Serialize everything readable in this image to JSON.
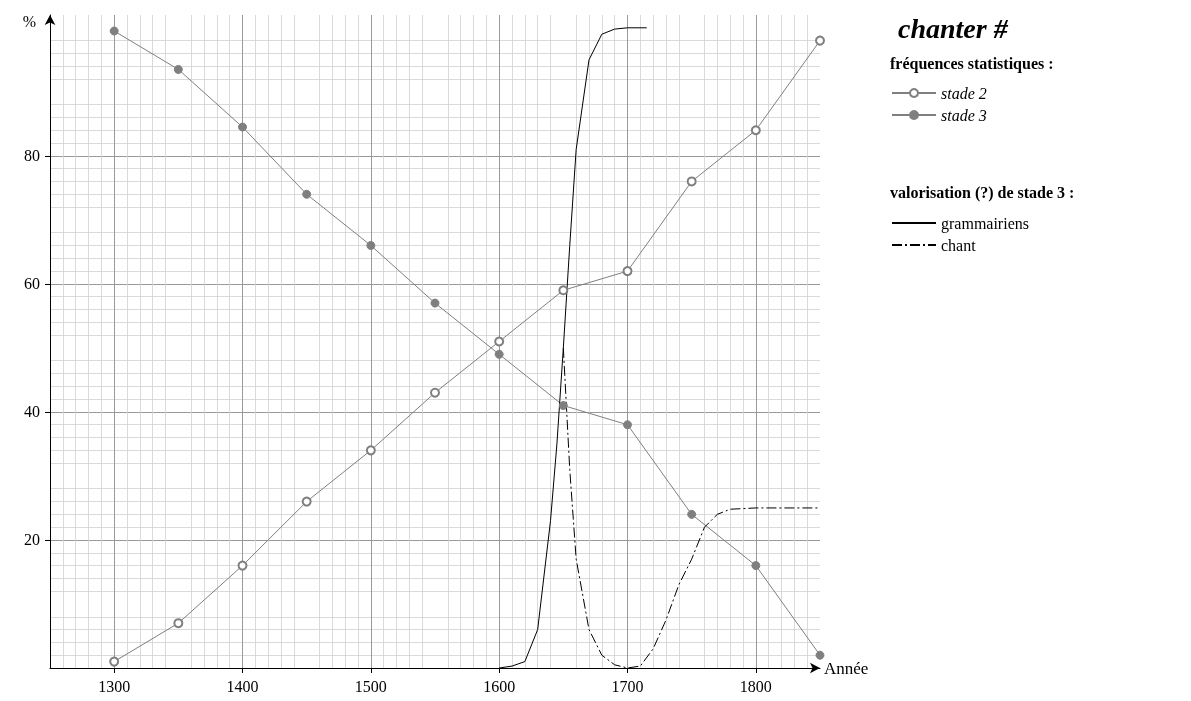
{
  "chart_data": {
    "type": "line",
    "title": "chanter #",
    "xlabel": "Année",
    "ylabel": "%",
    "xlim": [
      1250,
      1850
    ],
    "xticks": [
      1300,
      1400,
      1500,
      1600,
      1700,
      1800
    ],
    "ylim": [
      0,
      102
    ],
    "yticks": [
      20,
      40,
      60,
      80
    ],
    "grid": true,
    "legend": "right",
    "annotations": [
      "fréquences statistiques :",
      "valorisation (?) de stade 3 :"
    ],
    "series": [
      {
        "name": "stade 2",
        "color": "#7f7f7f",
        "marker": "circle",
        "line_style": "solid",
        "x": [
          1300,
          1350,
          1400,
          1450,
          1500,
          1550,
          1600,
          1650,
          1700,
          1750,
          1800,
          1850
        ],
        "values": [
          1,
          7,
          16,
          26,
          34,
          43,
          51,
          59,
          62,
          76,
          84,
          98
        ]
      },
      {
        "name": "stade 3",
        "color": "#7f7f7f",
        "marker": "circle",
        "line_style": "solid",
        "x": [
          1300,
          1350,
          1400,
          1450,
          1500,
          1550,
          1600,
          1650,
          1700,
          1750,
          1800,
          1850
        ],
        "values": [
          99.5,
          93.5,
          84.5,
          74,
          66,
          57,
          49,
          41,
          38,
          24,
          16,
          2
        ]
      },
      {
        "name": "grammairiens",
        "color": "#000000",
        "marker": "none",
        "line_style": "solid",
        "x": [
          1600,
          1610,
          1620,
          1630,
          1640,
          1645,
          1650,
          1655,
          1660,
          1670,
          1680,
          1690,
          1700,
          1715
        ],
        "values": [
          0,
          0.3,
          1,
          6,
          23,
          35,
          50,
          66,
          81,
          95,
          99,
          99.8,
          100,
          100
        ]
      },
      {
        "name": "chant",
        "color": "#000000",
        "marker": "none",
        "line_style": "dashdot",
        "x": [
          1650,
          1655,
          1660,
          1670,
          1680,
          1690,
          1700,
          1710,
          1720,
          1730,
          1740,
          1750,
          1760,
          1770,
          1780,
          1800,
          1850
        ],
        "values": [
          50,
          31,
          17,
          6,
          2,
          0.5,
          0,
          0.3,
          3,
          7.5,
          13,
          17,
          22,
          24,
          24.8,
          25,
          25
        ]
      }
    ]
  }
}
